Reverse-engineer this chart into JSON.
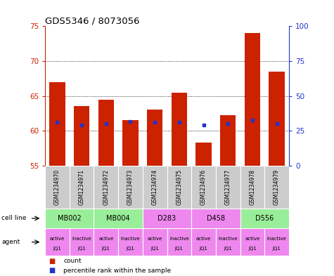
{
  "title": "GDS5346 / 8073056",
  "samples": [
    "GSM1234970",
    "GSM1234971",
    "GSM1234972",
    "GSM1234973",
    "GSM1234974",
    "GSM1234975",
    "GSM1234976",
    "GSM1234977",
    "GSM1234978",
    "GSM1234979"
  ],
  "bar_values": [
    67.0,
    63.5,
    64.5,
    61.5,
    63.0,
    65.5,
    58.3,
    62.2,
    74.0,
    68.5
  ],
  "percentile_values": [
    61.2,
    60.8,
    61.0,
    61.3,
    61.2,
    61.2,
    60.8,
    61.0,
    61.5,
    61.0
  ],
  "ylim_left": [
    55,
    75
  ],
  "ylim_right": [
    0,
    100
  ],
  "yticks_left": [
    55,
    60,
    65,
    70,
    75
  ],
  "yticks_right": [
    0,
    25,
    50,
    75,
    100
  ],
  "bar_color": "#CC2200",
  "percentile_color": "#2233CC",
  "cell_lines": [
    {
      "label": "MB002",
      "span": [
        0,
        2
      ],
      "color": "#99EE99"
    },
    {
      "label": "MB004",
      "span": [
        2,
        4
      ],
      "color": "#99EE99"
    },
    {
      "label": "D283",
      "span": [
        4,
        6
      ],
      "color": "#EE88EE"
    },
    {
      "label": "D458",
      "span": [
        6,
        8
      ],
      "color": "#EE88EE"
    },
    {
      "label": "D556",
      "span": [
        8,
        10
      ],
      "color": "#99EE99"
    }
  ],
  "agent_colors": [
    "#EE88EE",
    "#EE88EE",
    "#EE88EE",
    "#EE88EE",
    "#EE88EE",
    "#EE88EE",
    "#EE88EE",
    "#EE88EE",
    "#EE88EE",
    "#EE88EE"
  ],
  "agent_labels_top": [
    "active",
    "inactive",
    "active",
    "inactive",
    "active",
    "inactive",
    "active",
    "inactive",
    "active",
    "inactive"
  ],
  "agent_labels_bot": [
    "JQ1",
    "JQ1",
    "JQ1",
    "JQ1",
    "JQ1",
    "JQ1",
    "JQ1",
    "JQ1",
    "JQ1",
    "JQ1"
  ],
  "sample_bg_color": "#CCCCCC",
  "grid_dotted_at": [
    60,
    65,
    70
  ],
  "background_color": "#FFFFFF"
}
